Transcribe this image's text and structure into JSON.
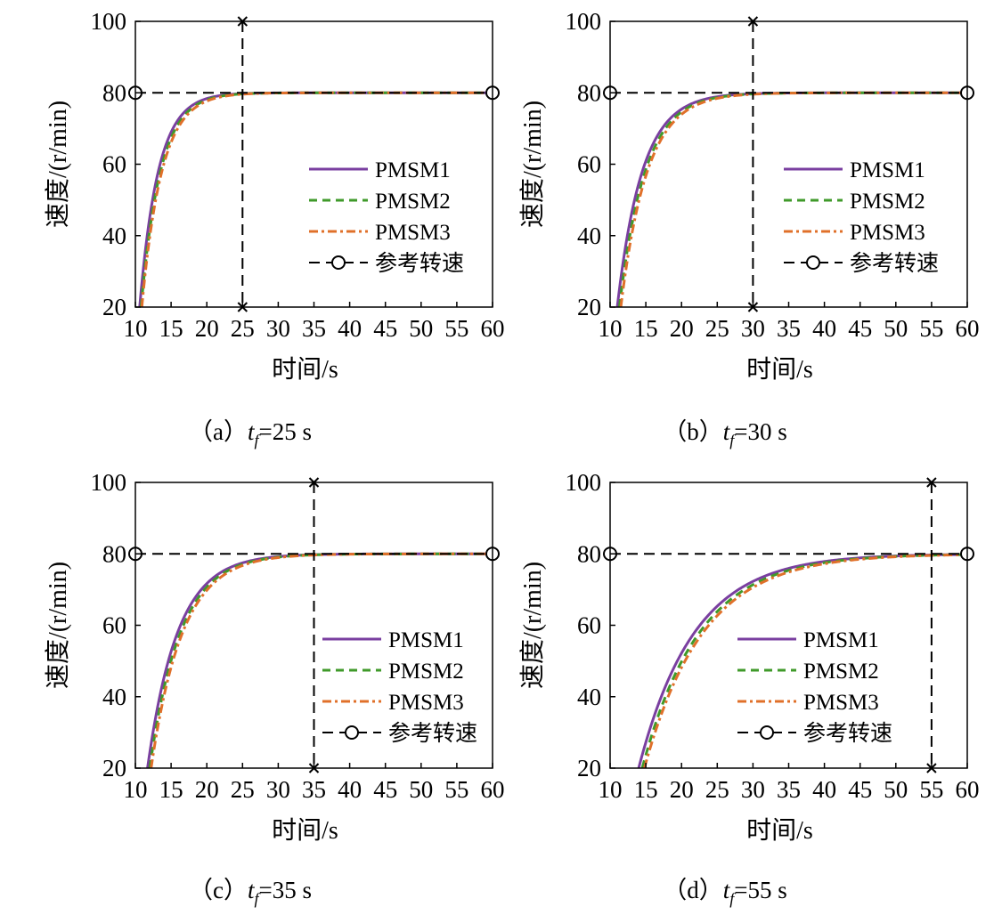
{
  "figure": {
    "colors": {
      "pmsm1": "#7a3fa0",
      "pmsm2": "#3f9a2a",
      "pmsm3": "#e0702a",
      "reference": "#000000"
    }
  },
  "chart_data": [
    {
      "type": "line",
      "panel_id": "a",
      "caption_prefix": "（a）",
      "caption_tf": "t",
      "caption_sub": "f",
      "caption_suffix": "=25 s",
      "xlabel": "时间/s",
      "ylabel": "速度/(r/min)",
      "xlim": [
        10,
        60
      ],
      "ylim": [
        20,
        100
      ],
      "xticks": [
        "10",
        "15",
        "20",
        "25",
        "30",
        "35",
        "40",
        "45",
        "50",
        "55",
        "60"
      ],
      "yticks": [
        "20",
        "40",
        "60",
        "80",
        "100"
      ],
      "tf": 25,
      "reference_speed": 80,
      "legend": [
        "PMSM1",
        "PMSM2",
        "PMSM3",
        "参考转速"
      ],
      "legend_position": "center-right",
      "series": [
        {
          "name": "PMSM1",
          "t0": 10.0,
          "x20": 10.6,
          "tau": 2.6
        },
        {
          "name": "PMSM2",
          "t0": 10.0,
          "x20": 10.8,
          "tau": 2.7
        },
        {
          "name": "PMSM3",
          "t0": 10.0,
          "x20": 10.9,
          "tau": 2.8
        }
      ]
    },
    {
      "type": "line",
      "panel_id": "b",
      "caption_prefix": "（b）",
      "caption_tf": "t",
      "caption_sub": "f",
      "caption_suffix": "=30 s",
      "xlabel": "时间/s",
      "ylabel": "速度/(r/min)",
      "xlim": [
        10,
        60
      ],
      "ylim": [
        20,
        100
      ],
      "xticks": [
        "10",
        "15",
        "20",
        "25",
        "30",
        "35",
        "40",
        "45",
        "50",
        "55",
        "60"
      ],
      "yticks": [
        "20",
        "40",
        "60",
        "80",
        "100"
      ],
      "tf": 30,
      "reference_speed": 80,
      "legend": [
        "PMSM1",
        "PMSM2",
        "PMSM3",
        "参考转速"
      ],
      "legend_position": "center-right",
      "series": [
        {
          "name": "PMSM1",
          "t0": 10.0,
          "x20": 11.0,
          "tau": 3.5
        },
        {
          "name": "PMSM2",
          "t0": 10.0,
          "x20": 11.3,
          "tau": 3.6
        },
        {
          "name": "PMSM3",
          "t0": 10.0,
          "x20": 11.5,
          "tau": 3.7
        }
      ]
    },
    {
      "type": "line",
      "panel_id": "c",
      "caption_prefix": "（c）",
      "caption_tf": "t",
      "caption_sub": "f",
      "caption_suffix": "=35 s",
      "xlabel": "时间/s",
      "ylabel": "速度/(r/min)",
      "xlim": [
        10,
        60
      ],
      "ylim": [
        20,
        100
      ],
      "xticks": [
        "10",
        "15",
        "20",
        "25",
        "30",
        "35",
        "40",
        "45",
        "50",
        "55",
        "60"
      ],
      "yticks": [
        "20",
        "40",
        "60",
        "80",
        "100"
      ],
      "tf": 35,
      "reference_speed": 80,
      "legend": [
        "PMSM1",
        "PMSM2",
        "PMSM3",
        "参考转速"
      ],
      "legend_position": "center-right",
      "series": [
        {
          "name": "PMSM1",
          "t0": 10.0,
          "x20": 11.7,
          "tau": 4.2
        },
        {
          "name": "PMSM2",
          "t0": 10.0,
          "x20": 12.0,
          "tau": 4.3
        },
        {
          "name": "PMSM3",
          "t0": 10.0,
          "x20": 12.2,
          "tau": 4.4
        }
      ]
    },
    {
      "type": "line",
      "panel_id": "d",
      "caption_prefix": "（d）",
      "caption_tf": "t",
      "caption_sub": "f",
      "caption_suffix": "=55 s",
      "xlabel": "时间/s",
      "ylabel": "速度/(r/min)",
      "xlim": [
        10,
        60
      ],
      "ylim": [
        20,
        100
      ],
      "xticks": [
        "10",
        "15",
        "20",
        "25",
        "30",
        "35",
        "40",
        "45",
        "50",
        "55",
        "60"
      ],
      "yticks": [
        "20",
        "40",
        "60",
        "80",
        "100"
      ],
      "tf": 55,
      "reference_speed": 80,
      "legend": [
        "PMSM1",
        "PMSM2",
        "PMSM3",
        "参考转速"
      ],
      "legend_position": "center-right",
      "series": [
        {
          "name": "PMSM1",
          "t0": 10.0,
          "x20": 14.0,
          "tau": 7.8
        },
        {
          "name": "PMSM2",
          "t0": 10.0,
          "x20": 14.5,
          "tau": 8.0
        },
        {
          "name": "PMSM3",
          "t0": 10.0,
          "x20": 14.8,
          "tau": 8.2
        }
      ]
    }
  ]
}
